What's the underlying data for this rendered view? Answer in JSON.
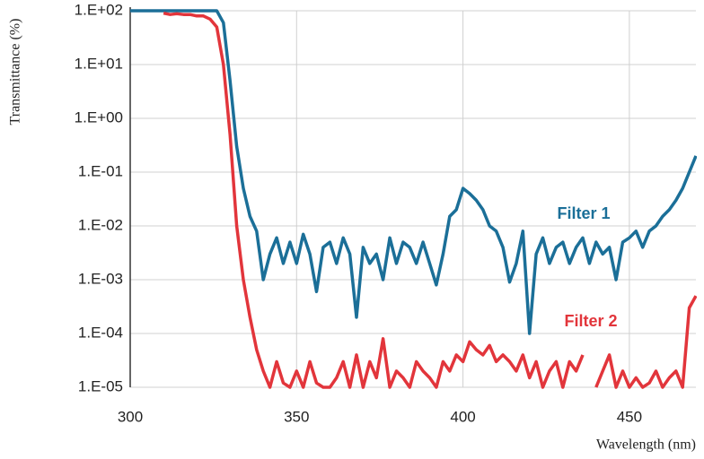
{
  "chart_data": {
    "type": "line",
    "xlabel": "Wavelength (nm)",
    "ylabel": "Transmittance (%)",
    "log_y": true,
    "grid": true,
    "xlim": [
      300,
      470
    ],
    "xticks": [
      300,
      350,
      400,
      450
    ],
    "ylim": [
      1e-05,
      100
    ],
    "yticks": [
      {
        "value": 100,
        "label": "1.E+02"
      },
      {
        "value": 10,
        "label": "1.E+01"
      },
      {
        "value": 1,
        "label": "1.E+00"
      },
      {
        "value": 0.1,
        "label": "1.E-01"
      },
      {
        "value": 0.01,
        "label": "1.E-02"
      },
      {
        "value": 0.001,
        "label": "1.E-03"
      },
      {
        "value": 0.0001,
        "label": "1.E-04"
      },
      {
        "value": 1e-05,
        "label": "1.E-05"
      }
    ],
    "x": [
      300,
      302,
      304,
      306,
      308,
      310,
      312,
      314,
      316,
      318,
      320,
      322,
      324,
      326,
      328,
      330,
      332,
      334,
      336,
      338,
      340,
      342,
      344,
      346,
      348,
      350,
      352,
      354,
      356,
      358,
      360,
      362,
      364,
      366,
      368,
      370,
      372,
      374,
      376,
      378,
      380,
      382,
      384,
      386,
      388,
      390,
      392,
      394,
      396,
      398,
      400,
      402,
      404,
      406,
      408,
      410,
      412,
      414,
      416,
      418,
      420,
      422,
      424,
      426,
      428,
      430,
      432,
      434,
      436,
      438,
      440,
      442,
      444,
      446,
      448,
      450,
      452,
      454,
      456,
      458,
      460,
      462,
      464,
      466,
      468,
      470
    ],
    "series": [
      {
        "name": "Filter 1",
        "color": "#1b6f98",
        "values": [
          100,
          100,
          100,
          100,
          100,
          100,
          100,
          100,
          100,
          100,
          100,
          100,
          100,
          100,
          60,
          5,
          0.3,
          0.05,
          0.015,
          0.008,
          0.001,
          0.003,
          0.006,
          0.002,
          0.005,
          0.002,
          0.007,
          0.003,
          0.0006,
          0.004,
          0.005,
          0.002,
          0.006,
          0.003,
          0.0002,
          0.004,
          0.002,
          0.003,
          0.001,
          0.006,
          0.002,
          0.005,
          0.004,
          0.002,
          0.005,
          0.002,
          0.0008,
          0.003,
          0.015,
          0.02,
          0.05,
          0.04,
          0.03,
          0.02,
          0.01,
          0.008,
          0.004,
          0.0009,
          0.002,
          0.008,
          0.0001,
          0.003,
          0.006,
          0.002,
          0.004,
          0.005,
          0.002,
          0.004,
          0.006,
          0.002,
          0.005,
          0.003,
          0.004,
          0.001,
          0.005,
          0.006,
          0.008,
          0.004,
          0.008,
          0.01,
          0.015,
          0.02,
          0.03,
          0.05,
          0.1,
          0.2
        ]
      },
      {
        "name": "Filter 2",
        "color": "#e2353b",
        "values": [
          null,
          null,
          null,
          null,
          null,
          90,
          85,
          88,
          85,
          85,
          80,
          80,
          70,
          50,
          10,
          0.5,
          0.01,
          0.001,
          0.0002,
          5e-05,
          2e-05,
          1e-05,
          3e-05,
          1.2e-05,
          1e-05,
          2e-05,
          1e-05,
          3e-05,
          1.2e-05,
          1e-05,
          1e-05,
          1.5e-05,
          3e-05,
          1e-05,
          4e-05,
          1e-05,
          3e-05,
          1.5e-05,
          8e-05,
          1e-05,
          2e-05,
          1.5e-05,
          1e-05,
          3e-05,
          2e-05,
          1.5e-05,
          1e-05,
          3e-05,
          2e-05,
          4e-05,
          3e-05,
          7e-05,
          5e-05,
          4e-05,
          6e-05,
          3e-05,
          4e-05,
          3e-05,
          2e-05,
          4e-05,
          1.5e-05,
          3e-05,
          1e-05,
          2e-05,
          3e-05,
          1e-05,
          3e-05,
          2e-05,
          4e-05,
          null,
          1e-05,
          2e-05,
          4e-05,
          1e-05,
          2e-05,
          1e-05,
          1.5e-05,
          1e-05,
          1.2e-05,
          2e-05,
          1e-05,
          1.5e-05,
          2e-05,
          1e-05,
          0.0003,
          0.0005
        ]
      }
    ]
  }
}
